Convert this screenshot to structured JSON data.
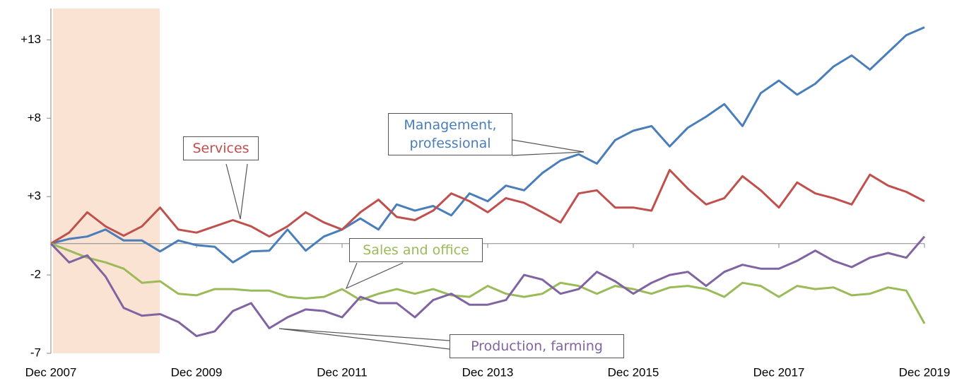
{
  "chart_data": {
    "type": "line",
    "categories": [
      "Dec 2007",
      null,
      null,
      null,
      null,
      null,
      null,
      null,
      "Dec 2009",
      null,
      null,
      null,
      null,
      null,
      null,
      null,
      "Dec 2011",
      null,
      null,
      null,
      null,
      null,
      null,
      null,
      "Dec 2013",
      null,
      null,
      null,
      null,
      null,
      null,
      null,
      "Dec 2015",
      null,
      null,
      null,
      null,
      null,
      null,
      null,
      "Dec 2017",
      null,
      null,
      null,
      null,
      null,
      null,
      null,
      "Dec 2019"
    ],
    "series": [
      {
        "name": "Management, professional",
        "color": "#4a7ebb",
        "values": [
          0,
          0.3,
          0.45,
          0.9,
          0.2,
          0.2,
          -0.5,
          0.2,
          -0.1,
          -0.2,
          -1.2,
          -0.5,
          -0.45,
          0.9,
          -0.45,
          0.45,
          0.9,
          1.6,
          0.9,
          2.5,
          2.1,
          2.4,
          1.8,
          3.2,
          2.7,
          3.7,
          3.4,
          4.5,
          5.3,
          5.7,
          5.1,
          6.6,
          7.2,
          7.5,
          6.2,
          7.4,
          8.1,
          8.9,
          7.5,
          9.6,
          10.4,
          9.5,
          10.2,
          11.3,
          12.0,
          11.1,
          12.2,
          13.3,
          13.8
        ]
      },
      {
        "name": "Services",
        "color": "#c0504d",
        "values": [
          0,
          0.7,
          2.0,
          1.1,
          0.5,
          1.1,
          2.3,
          0.9,
          0.7,
          1.1,
          1.5,
          1.1,
          0.45,
          1.1,
          2.0,
          1.35,
          0.9,
          2.0,
          2.8,
          1.7,
          1.5,
          2.1,
          3.2,
          2.7,
          2.0,
          2.9,
          2.6,
          2.0,
          1.35,
          3.2,
          3.4,
          2.3,
          2.3,
          2.1,
          4.7,
          3.5,
          2.5,
          2.9,
          4.3,
          3.4,
          2.3,
          3.9,
          3.2,
          2.9,
          2.5,
          4.4,
          3.7,
          3.3,
          2.7
        ]
      },
      {
        "name": "Sales and office",
        "color": "#9bbb59",
        "values": [
          0,
          -0.45,
          -0.9,
          -1.2,
          -1.6,
          -2.5,
          -2.4,
          -3.2,
          -3.3,
          -2.9,
          -2.9,
          -3.0,
          -3.0,
          -3.4,
          -3.5,
          -3.4,
          -2.9,
          -3.6,
          -3.2,
          -2.9,
          -3.2,
          -2.9,
          -3.3,
          -3.4,
          -2.7,
          -3.2,
          -3.4,
          -3.2,
          -2.5,
          -2.7,
          -3.2,
          -2.7,
          -2.9,
          -3.2,
          -2.8,
          -2.7,
          -2.9,
          -3.4,
          -2.5,
          -2.7,
          -3.4,
          -2.7,
          -2.9,
          -2.8,
          -3.3,
          -3.2,
          -2.8,
          -3.0,
          -5.1
        ]
      },
      {
        "name": "Production, farming",
        "color": "#8064a2",
        "values": [
          0,
          -1.2,
          -0.75,
          -2.1,
          -4.1,
          -4.6,
          -4.5,
          -5.0,
          -5.9,
          -5.6,
          -4.3,
          -3.8,
          -5.4,
          -4.7,
          -4.2,
          -4.3,
          -4.7,
          -3.4,
          -3.8,
          -3.8,
          -4.7,
          -3.6,
          -3.2,
          -3.9,
          -3.9,
          -3.6,
          -2.0,
          -2.3,
          -3.2,
          -2.9,
          -1.8,
          -2.4,
          -3.2,
          -2.5,
          -2.0,
          -1.8,
          -2.7,
          -1.8,
          -1.35,
          -1.6,
          -1.6,
          -1.1,
          -0.45,
          -1.1,
          -1.5,
          -0.9,
          -0.6,
          -0.9,
          0.45
        ]
      }
    ],
    "ylim": [
      -7,
      15
    ],
    "yticks": [
      {
        "value": 13,
        "label": "+13"
      },
      {
        "value": 8,
        "label": "+8"
      },
      {
        "value": 3,
        "label": "+3"
      },
      -2,
      -7
    ],
    "grid": false
  }
}
